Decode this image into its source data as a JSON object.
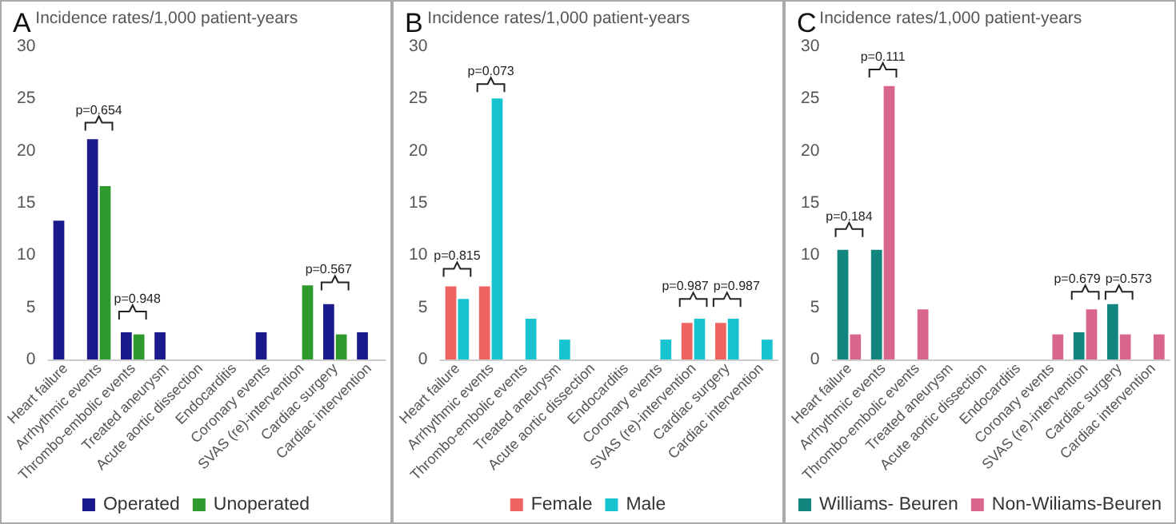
{
  "chart_data": [
    {
      "type": "bar",
      "title": "A",
      "ylabel": "Incidence rates/1,000 patient-years",
      "categories": [
        "Heart failure",
        "Arrhythmic events",
        "Thrombo-embolic events",
        "Treated aneurysm",
        "Acute aortic dissection",
        "Endocarditis",
        "Coronary events",
        "SVAS (re)-intervention",
        "Cardiac surgery",
        "Cardiac intervention"
      ],
      "series": [
        {
          "name": "Operated",
          "color": "#1a1a8c",
          "values": [
            13.3,
            21.1,
            2.6,
            2.6,
            0,
            0,
            2.6,
            0,
            5.3,
            2.6
          ]
        },
        {
          "name": "Unoperated",
          "color": "#2e9a2e",
          "values": [
            0,
            16.6,
            2.4,
            0,
            0,
            0,
            0,
            7.1,
            2.4,
            0
          ]
        }
      ],
      "ylim": [
        0,
        30
      ],
      "yticks": [
        0,
        5,
        10,
        15,
        20,
        25,
        30
      ],
      "grid": false,
      "legend": "bottom",
      "annotations": [
        "p=0.654",
        "p=0.948",
        "p=0.567"
      ]
    },
    {
      "type": "bar",
      "title": "B",
      "ylabel": "Incidence rates/1,000 patient-years",
      "categories": [
        "Heart failure",
        "Arrhythmic events",
        "Thrombo-embolic events",
        "Treated aneurysm",
        "Acute aortic dissection",
        "Endocarditis",
        "Coronary events",
        "SVAS (re)-intervention",
        "Cardiac surgery",
        "Cardiac intervention"
      ],
      "series": [
        {
          "name": "Female",
          "color": "#ef6461",
          "values": [
            7.0,
            7.0,
            0,
            0,
            0,
            0,
            0,
            3.5,
            3.5,
            0
          ]
        },
        {
          "name": "Male",
          "color": "#17c3cf",
          "values": [
            5.8,
            25,
            3.9,
            1.9,
            0,
            0,
            1.9,
            3.9,
            3.9,
            1.9
          ]
        }
      ],
      "ylim": [
        0,
        30
      ],
      "yticks": [
        0,
        5,
        10,
        15,
        20,
        25,
        30
      ],
      "grid": false,
      "legend": "bottom",
      "annotations": [
        "p=0.815",
        "p=0.073",
        "p=0.987",
        "p=0.987"
      ]
    },
    {
      "type": "bar",
      "title": "C",
      "ylabel": "Incidence rates/1,000 patient-years",
      "categories": [
        "Heart failure",
        "Arrhythmic events",
        "Thrombo-embolic events",
        "Treated aneurysm",
        "Acute aortic dissection",
        "Endocarditis",
        "Coronary events",
        "SVAS (re)-intervention",
        "Cardiac surgery",
        "Cardiac intervention"
      ],
      "series": [
        {
          "name": "Williams- Beuren",
          "color": "#13857f",
          "values": [
            10.5,
            10.5,
            0,
            0,
            0,
            0,
            0,
            2.6,
            5.3,
            0
          ]
        },
        {
          "name": "Non-Wiliams-Beuren",
          "color": "#d9668c",
          "values": [
            2.4,
            26.2,
            4.8,
            0,
            0,
            0,
            2.4,
            4.8,
            2.4,
            2.4
          ]
        }
      ],
      "ylim": [
        0,
        30
      ],
      "yticks": [
        0,
        5,
        10,
        15,
        20,
        25,
        30
      ],
      "grid": false,
      "legend": "bottom",
      "annotations": [
        "p=0.184",
        "p=0.111",
        "p=0.679",
        "p=0.573"
      ]
    }
  ]
}
